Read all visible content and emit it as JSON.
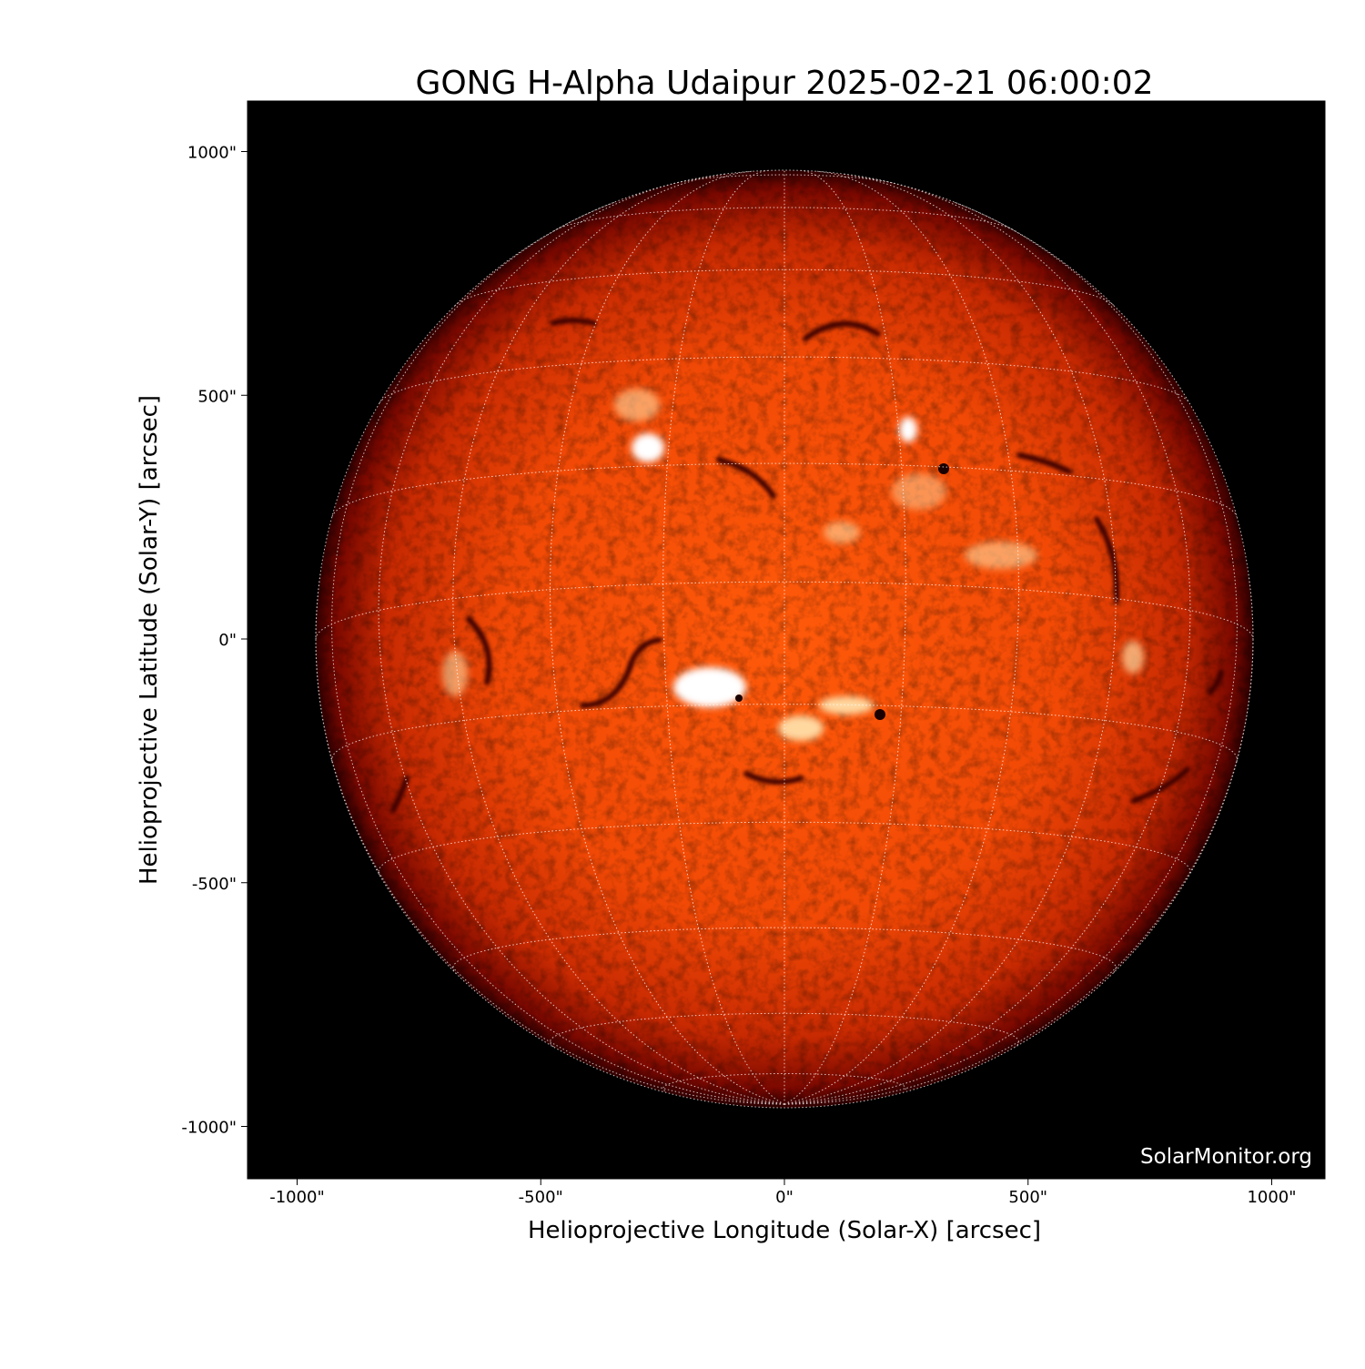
{
  "title": "GONG H-Alpha Udaipur 2025-02-21 06:00:02",
  "xlabel": "Helioprojective Longitude (Solar-X) [arcsec]",
  "ylabel": "Helioprojective Latitude (Solar-Y) [arcsec]",
  "watermark": "SolarMonitor.org",
  "x_ticks": [
    "-1000\"",
    "-500\"",
    "0\"",
    "500\"",
    "1000\""
  ],
  "y_ticks": [
    "1000\"",
    "500\"",
    "0\"",
    "-500\"",
    "-1000\""
  ],
  "x_tick_values": [
    -1000,
    -500,
    0,
    500,
    1000
  ],
  "y_tick_values": [
    1000,
    500,
    0,
    -500,
    -1000
  ],
  "axis_range_arcsec": [
    -1100,
    1100
  ],
  "colormap": "GONG H-alpha red",
  "colors": {
    "disk_center": "#ff5a0a",
    "disk_limb": "#8a0c00",
    "background": "#000000"
  },
  "grid": "heliographic lat/lon grid, dotted white"
}
